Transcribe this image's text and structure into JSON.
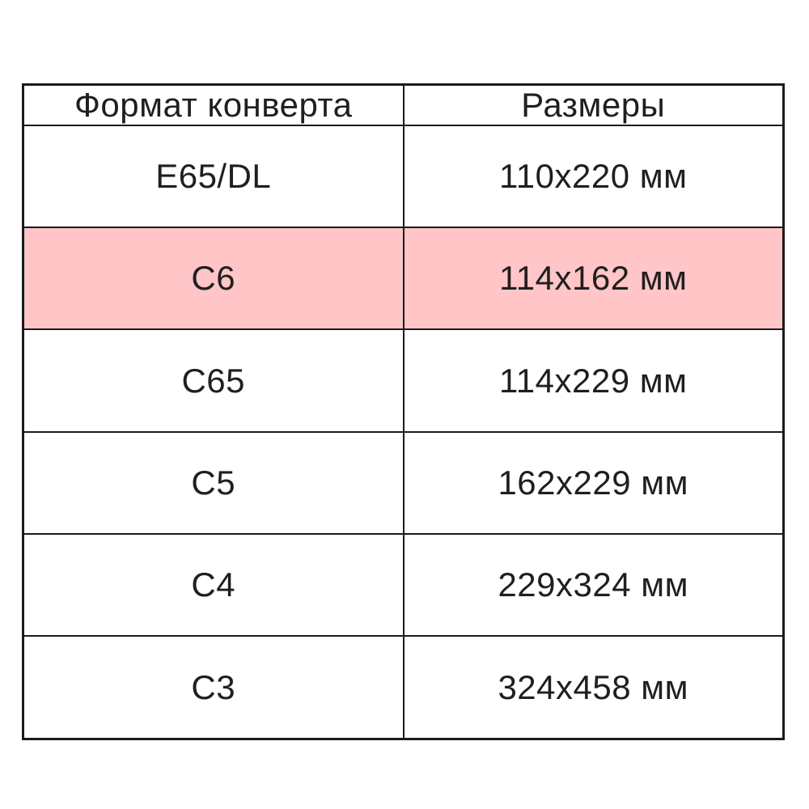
{
  "chart_data": {
    "type": "table",
    "title": "",
    "columns": [
      "Формат конверта",
      "Размеры"
    ],
    "rows": [
      [
        "E65/DL",
        "110x220 мм"
      ],
      [
        "C6",
        "114x162 мм"
      ],
      [
        "C65",
        "114x229 мм"
      ],
      [
        "C5",
        "162x229 мм"
      ],
      [
        "C4",
        "229x324 мм"
      ],
      [
        "C3",
        "324x458 мм"
      ]
    ],
    "highlight_row_index": 1,
    "highlight_color": "#ffc5c7",
    "border_color": "#1b1b1b",
    "text_color": "#1f1f1f",
    "background_color": "#ffffff"
  }
}
